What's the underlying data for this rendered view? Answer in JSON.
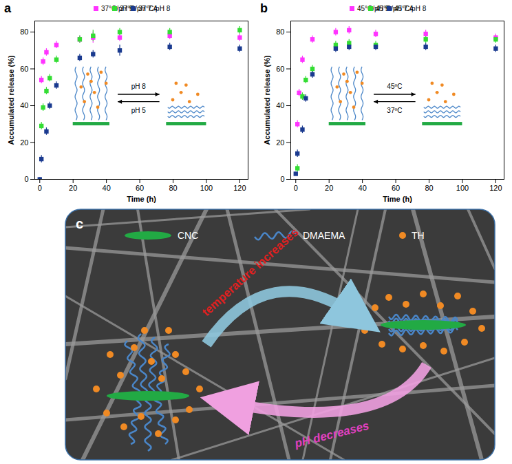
{
  "chart_data": [
    {
      "type": "scatter",
      "title": "a",
      "x_label": "Time (h)",
      "y_label": "Accumulated release (%)",
      "xlim": [
        -3,
        125
      ],
      "xticks": [
        0,
        20,
        40,
        60,
        80,
        100,
        120
      ],
      "ylim": [
        0,
        86
      ],
      "yticks": [
        0,
        20,
        40,
        60,
        80
      ],
      "grid": false,
      "marker": "square",
      "legend": "top",
      "annotations": [
        "pH 8",
        "pH 5"
      ],
      "series": [
        {
          "name": "37°C/pH 5",
          "color": "#ff33ff",
          "x": [
            1,
            2,
            4,
            10,
            24,
            32,
            48,
            78,
            120
          ],
          "values": [
            54,
            64,
            69,
            73,
            76,
            77,
            77,
            78,
            77
          ],
          "errors": [
            2,
            2,
            2,
            2,
            2,
            3,
            2,
            2,
            2
          ]
        },
        {
          "name": "37°C/pH 7.4",
          "color": "#33dd33",
          "x": [
            1,
            2,
            4,
            6,
            10,
            24,
            32,
            48,
            78,
            120
          ],
          "values": [
            29,
            39,
            48,
            55,
            65,
            76,
            78,
            80,
            80,
            81
          ],
          "errors": [
            2,
            2,
            2,
            2,
            2,
            2,
            3,
            2,
            2,
            2
          ]
        },
        {
          "name": "37°C/pH 8",
          "color": "#1a3a8f",
          "x": [
            0,
            1,
            4,
            6,
            10,
            24,
            32,
            48,
            78,
            120
          ],
          "values": [
            0,
            11,
            26,
            40,
            51,
            66,
            68,
            70,
            72,
            71
          ],
          "errors": [
            1,
            2,
            2,
            2,
            2,
            2,
            2,
            3,
            2,
            2
          ]
        }
      ]
    },
    {
      "type": "scatter",
      "title": "b",
      "x_label": "Time (h)",
      "y_label": "Accumulated release (%)",
      "xlim": [
        -3,
        125
      ],
      "xticks": [
        0,
        20,
        40,
        60,
        80,
        100,
        120
      ],
      "ylim": [
        0,
        86
      ],
      "yticks": [
        0,
        20,
        40,
        60,
        80
      ],
      "grid": false,
      "marker": "square",
      "legend": "top",
      "annotations": [
        "45ºC",
        "37ºC"
      ],
      "series": [
        {
          "name": "45°C/pH 5",
          "color": "#ff33ff",
          "x": [
            1,
            2,
            4,
            10,
            24,
            32,
            48,
            78,
            120
          ],
          "values": [
            30,
            47,
            65,
            76,
            80,
            81,
            79,
            79,
            77
          ],
          "errors": [
            2,
            2,
            2,
            2,
            2,
            2,
            2,
            2,
            2
          ]
        },
        {
          "name": "45°C/pH 7.4",
          "color": "#33dd33",
          "x": [
            1,
            4,
            6,
            10,
            24,
            32,
            48,
            78,
            120
          ],
          "values": [
            6,
            45,
            54,
            60,
            73,
            74,
            73,
            76,
            76
          ],
          "errors": [
            2,
            2,
            2,
            2,
            2,
            2,
            2,
            2,
            2
          ]
        },
        {
          "name": "45°C/pH 8",
          "color": "#1a3a8f",
          "x": [
            0,
            1,
            4,
            6,
            10,
            24,
            32,
            48,
            78,
            120
          ],
          "values": [
            3,
            14,
            27,
            44,
            57,
            71,
            72,
            72,
            72,
            71
          ],
          "errors": [
            1,
            2,
            2,
            2,
            2,
            2,
            2,
            2,
            2,
            2
          ]
        }
      ]
    }
  ],
  "diagram": {
    "label": "c",
    "legend": [
      {
        "name": "CNC",
        "color": "#22aa44"
      },
      {
        "name": "DMAEMA",
        "color": "#4a86c8"
      },
      {
        "name": "TH",
        "color": "#f08a24"
      }
    ],
    "arrows": [
      {
        "text": "temperature increases",
        "color": "#e02020"
      },
      {
        "text": "pH decreases",
        "color": "#e040c0"
      }
    ]
  }
}
